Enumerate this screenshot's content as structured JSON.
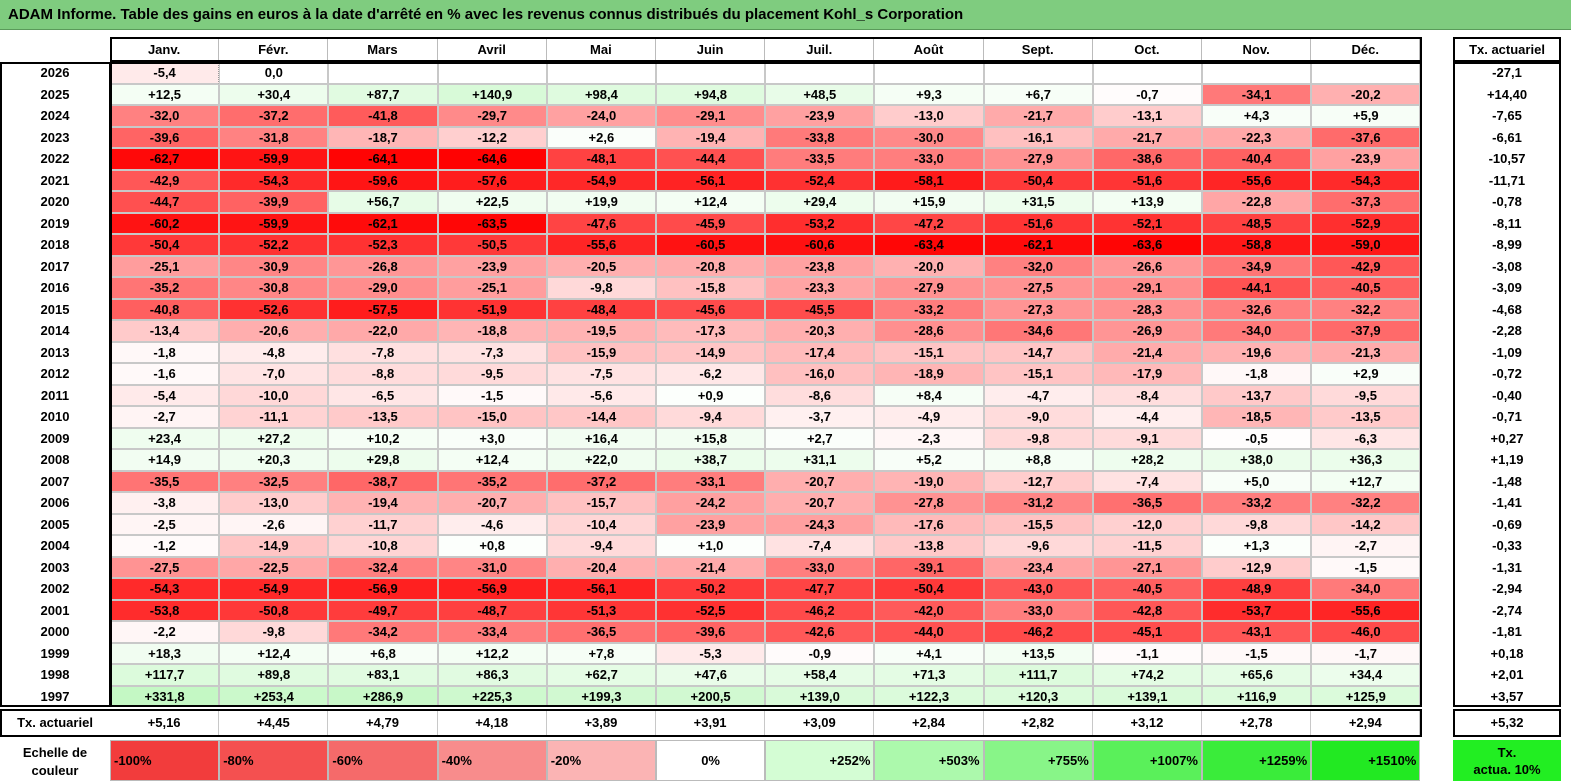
{
  "title": "ADAM Informe. Table des gains en euros à la date d'arrêté en % avec les revenus connus distribués du placement Kohl_s Corporation",
  "chart_data": {
    "type": "heatmap",
    "title": "ADAM Informe. Table des gains en euros à la date d'arrêté en % avec les revenus connus distribués du placement Kohl_s Corporation",
    "columns": [
      "Janv.",
      "Févr.",
      "Mars",
      "Avril",
      "Mai",
      "Juin",
      "Juil.",
      "Août",
      "Sept.",
      "Oct.",
      "Nov.",
      "Déc."
    ],
    "tx_header": "Tx. actuariel",
    "rows": [
      {
        "year": "2026",
        "values": [
          "-5,4",
          "0,0",
          "",
          "",
          "",
          "",
          "",
          "",
          "",
          "",
          "",
          ""
        ],
        "tx": "-27,1"
      },
      {
        "year": "2025",
        "values": [
          "+12,5",
          "+30,4",
          "+87,7",
          "+140,9",
          "+98,4",
          "+94,8",
          "+48,5",
          "+9,3",
          "+6,7",
          "-0,7",
          "-34,1",
          "-20,2"
        ],
        "tx": "+14,40"
      },
      {
        "year": "2024",
        "values": [
          "-32,0",
          "-37,2",
          "-41,8",
          "-29,7",
          "-24,0",
          "-29,1",
          "-23,9",
          "-13,0",
          "-21,7",
          "-13,1",
          "+4,3",
          "+5,9"
        ],
        "tx": "-7,65"
      },
      {
        "year": "2023",
        "values": [
          "-39,6",
          "-31,8",
          "-18,7",
          "-12,2",
          "+2,6",
          "-19,4",
          "-33,8",
          "-30,0",
          "-16,1",
          "-21,7",
          "-22,3",
          "-37,6"
        ],
        "tx": "-6,61"
      },
      {
        "year": "2022",
        "values": [
          "-62,7",
          "-59,9",
          "-64,1",
          "-64,6",
          "-48,1",
          "-44,4",
          "-33,5",
          "-33,0",
          "-27,9",
          "-38,6",
          "-40,4",
          "-23,9"
        ],
        "tx": "-10,57"
      },
      {
        "year": "2021",
        "values": [
          "-42,9",
          "-54,3",
          "-59,6",
          "-57,6",
          "-54,9",
          "-56,1",
          "-52,4",
          "-58,1",
          "-50,4",
          "-51,6",
          "-55,6",
          "-54,3"
        ],
        "tx": "-11,71"
      },
      {
        "year": "2020",
        "values": [
          "-44,7",
          "-39,9",
          "+56,7",
          "+22,5",
          "+19,9",
          "+12,4",
          "+29,4",
          "+15,9",
          "+31,5",
          "+13,9",
          "-22,8",
          "-37,3"
        ],
        "tx": "-0,78"
      },
      {
        "year": "2019",
        "values": [
          "-60,2",
          "-59,9",
          "-62,1",
          "-63,5",
          "-47,6",
          "-45,9",
          "-53,2",
          "-47,2",
          "-51,6",
          "-52,1",
          "-48,5",
          "-52,9"
        ],
        "tx": "-8,11"
      },
      {
        "year": "2018",
        "values": [
          "-50,4",
          "-52,2",
          "-52,3",
          "-50,5",
          "-55,6",
          "-60,5",
          "-60,6",
          "-63,4",
          "-62,1",
          "-63,6",
          "-58,8",
          "-59,0"
        ],
        "tx": "-8,99"
      },
      {
        "year": "2017",
        "values": [
          "-25,1",
          "-30,9",
          "-26,8",
          "-23,9",
          "-20,5",
          "-20,8",
          "-23,8",
          "-20,0",
          "-32,0",
          "-26,6",
          "-34,9",
          "-42,9"
        ],
        "tx": "-3,08"
      },
      {
        "year": "2016",
        "values": [
          "-35,2",
          "-30,8",
          "-29,0",
          "-25,1",
          "-9,8",
          "-15,8",
          "-23,3",
          "-27,9",
          "-27,5",
          "-29,1",
          "-44,1",
          "-40,5"
        ],
        "tx": "-3,09"
      },
      {
        "year": "2015",
        "values": [
          "-40,8",
          "-52,6",
          "-57,5",
          "-51,9",
          "-48,4",
          "-45,6",
          "-45,5",
          "-33,2",
          "-27,3",
          "-28,3",
          "-32,6",
          "-32,2"
        ],
        "tx": "-4,68"
      },
      {
        "year": "2014",
        "values": [
          "-13,4",
          "-20,6",
          "-22,0",
          "-18,8",
          "-19,5",
          "-17,3",
          "-20,3",
          "-28,6",
          "-34,6",
          "-26,9",
          "-34,0",
          "-37,9"
        ],
        "tx": "-2,28"
      },
      {
        "year": "2013",
        "values": [
          "-1,8",
          "-4,8",
          "-7,8",
          "-7,3",
          "-15,9",
          "-14,9",
          "-17,4",
          "-15,1",
          "-14,7",
          "-21,4",
          "-19,6",
          "-21,3"
        ],
        "tx": "-1,09"
      },
      {
        "year": "2012",
        "values": [
          "-1,6",
          "-7,0",
          "-8,8",
          "-9,5",
          "-7,5",
          "-6,2",
          "-16,0",
          "-18,9",
          "-15,1",
          "-17,9",
          "-1,8",
          "+2,9"
        ],
        "tx": "-0,72"
      },
      {
        "year": "2011",
        "values": [
          "-5,4",
          "-10,0",
          "-6,5",
          "-1,5",
          "-5,6",
          "+0,9",
          "-8,6",
          "+8,4",
          "-4,7",
          "-8,4",
          "-13,7",
          "-9,5"
        ],
        "tx": "-0,40"
      },
      {
        "year": "2010",
        "values": [
          "-2,7",
          "-11,1",
          "-13,5",
          "-15,0",
          "-14,4",
          "-9,4",
          "-3,7",
          "-4,9",
          "-9,0",
          "-4,4",
          "-18,5",
          "-13,5"
        ],
        "tx": "-0,71"
      },
      {
        "year": "2009",
        "values": [
          "+23,4",
          "+27,2",
          "+10,2",
          "+3,0",
          "+16,4",
          "+15,8",
          "+2,7",
          "-2,3",
          "-9,8",
          "-9,1",
          "-0,5",
          "-6,3"
        ],
        "tx": "+0,27"
      },
      {
        "year": "2008",
        "values": [
          "+14,9",
          "+20,3",
          "+29,8",
          "+12,4",
          "+22,0",
          "+38,7",
          "+31,1",
          "+5,2",
          "+8,8",
          "+28,2",
          "+38,0",
          "+36,3"
        ],
        "tx": "+1,19"
      },
      {
        "year": "2007",
        "values": [
          "-35,5",
          "-32,5",
          "-38,7",
          "-35,2",
          "-37,2",
          "-33,1",
          "-20,7",
          "-19,0",
          "-12,7",
          "-7,4",
          "+5,0",
          "+12,7"
        ],
        "tx": "-1,48"
      },
      {
        "year": "2006",
        "values": [
          "-3,8",
          "-13,0",
          "-19,4",
          "-20,7",
          "-15,7",
          "-24,2",
          "-20,7",
          "-27,8",
          "-31,2",
          "-36,5",
          "-33,2",
          "-32,2"
        ],
        "tx": "-1,41"
      },
      {
        "year": "2005",
        "values": [
          "-2,5",
          "-2,6",
          "-11,7",
          "-4,6",
          "-10,4",
          "-23,9",
          "-24,3",
          "-17,6",
          "-15,5",
          "-12,0",
          "-9,8",
          "-14,2"
        ],
        "tx": "-0,69"
      },
      {
        "year": "2004",
        "values": [
          "-1,2",
          "-14,9",
          "-10,8",
          "+0,8",
          "-9,4",
          "+1,0",
          "-7,4",
          "-13,8",
          "-9,6",
          "-11,5",
          "+1,3",
          "-2,7"
        ],
        "tx": "-0,33"
      },
      {
        "year": "2003",
        "values": [
          "-27,5",
          "-22,5",
          "-32,4",
          "-31,0",
          "-20,4",
          "-21,4",
          "-33,0",
          "-39,1",
          "-23,4",
          "-27,1",
          "-12,9",
          "-1,5"
        ],
        "tx": "-1,31"
      },
      {
        "year": "2002",
        "values": [
          "-54,3",
          "-54,9",
          "-56,9",
          "-56,9",
          "-56,1",
          "-50,2",
          "-47,7",
          "-50,4",
          "-43,0",
          "-40,5",
          "-48,9",
          "-34,0"
        ],
        "tx": "-2,94"
      },
      {
        "year": "2001",
        "values": [
          "-53,8",
          "-50,8",
          "-49,7",
          "-48,7",
          "-51,3",
          "-52,5",
          "-46,2",
          "-42,0",
          "-33,0",
          "-42,8",
          "-53,7",
          "-55,6"
        ],
        "tx": "-2,74"
      },
      {
        "year": "2000",
        "values": [
          "-2,2",
          "-9,8",
          "-34,2",
          "-33,4",
          "-36,5",
          "-39,6",
          "-42,6",
          "-44,0",
          "-46,2",
          "-45,1",
          "-43,1",
          "-46,0"
        ],
        "tx": "-1,81"
      },
      {
        "year": "1999",
        "values": [
          "+18,3",
          "+12,4",
          "+6,8",
          "+12,2",
          "+7,8",
          "-5,3",
          "-0,9",
          "+4,1",
          "+13,5",
          "-1,1",
          "-1,5",
          "-1,7"
        ],
        "tx": "+0,18"
      },
      {
        "year": "1998",
        "values": [
          "+117,7",
          "+89,8",
          "+83,1",
          "+86,3",
          "+62,7",
          "+47,6",
          "+58,4",
          "+71,3",
          "+111,7",
          "+74,2",
          "+65,6",
          "+34,4"
        ],
        "tx": "+2,01"
      },
      {
        "year": "1997",
        "values": [
          "+331,8",
          "+253,4",
          "+286,9",
          "+225,3",
          "+199,3",
          "+200,5",
          "+139,0",
          "+122,3",
          "+120,3",
          "+139,1",
          "+116,9",
          "+125,9"
        ],
        "tx": "+3,57"
      }
    ],
    "summary_row": {
      "label": "Tx. actuariel",
      "values": [
        "+5,16",
        "+4,45",
        "+4,79",
        "+4,18",
        "+3,89",
        "+3,91",
        "+3,09",
        "+2,84",
        "+2,82",
        "+3,12",
        "+2,78",
        "+2,94"
      ],
      "tx": "+5,32"
    },
    "legend": {
      "label_line1": "Echelle de",
      "label_line2": "couleur",
      "items": [
        {
          "label": "-100%",
          "color": "#f23c3c"
        },
        {
          "label": "-80%",
          "color": "#f45050"
        },
        {
          "label": "-60%",
          "color": "#f56a6a"
        },
        {
          "label": "-40%",
          "color": "#f88c8c"
        },
        {
          "label": "-20%",
          "color": "#fbb4b4"
        },
        {
          "label": "0%",
          "color": "#ffffff"
        },
        {
          "label": "+252%",
          "color": "#d4fdd4"
        },
        {
          "label": "+503%",
          "color": "#acf9ac"
        },
        {
          "label": "+755%",
          "color": "#88f588"
        },
        {
          "label": "+1007%",
          "color": "#5af05a"
        },
        {
          "label": "+1259%",
          "color": "#3aec3a"
        },
        {
          "label": "+1510%",
          "color": "#22e922"
        }
      ],
      "tx_line1": "Tx.",
      "tx_line2": "actua. 10%",
      "tx_color": "#22ee22"
    },
    "colors": {
      "neg_max": "#ff0000",
      "neutral": "#ffffff",
      "pos_max": "#00e000",
      "title_bg": "#7fcc7f"
    }
  }
}
